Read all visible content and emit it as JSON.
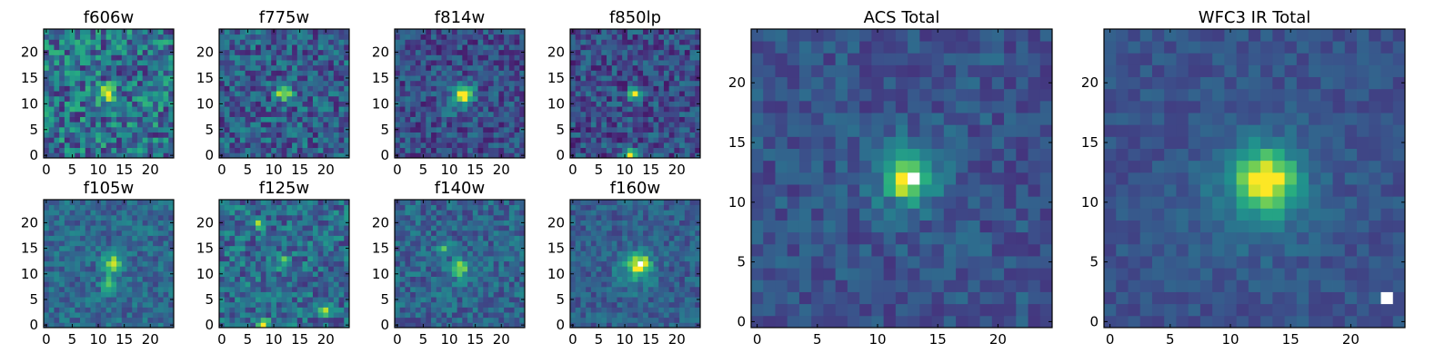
{
  "figure": {
    "description_colormap": "viridis"
  },
  "chart_data": [
    {
      "type": "heatmap",
      "title": "f606w",
      "grid_size": 25,
      "xticks": [
        "0",
        "5",
        "10",
        "15",
        "20"
      ],
      "yticks": [
        "0",
        "5",
        "10",
        "15",
        "20"
      ],
      "xlim": [
        0,
        24
      ],
      "ylim": [
        0,
        24
      ],
      "seed": 11,
      "noise": 0.55,
      "base": 0.38,
      "sources": [
        {
          "x": 12,
          "y": 12,
          "amp": 0.35,
          "sigma": 1.2
        },
        {
          "x": 11,
          "y": 12,
          "amp": 0.3,
          "sigma": 0.8
        }
      ]
    },
    {
      "type": "heatmap",
      "title": "f775w",
      "grid_size": 25,
      "xticks": [
        "0",
        "5",
        "10",
        "15",
        "20"
      ],
      "yticks": [
        "0",
        "5",
        "10",
        "15",
        "20"
      ],
      "xlim": [
        0,
        24
      ],
      "ylim": [
        0,
        24
      ],
      "seed": 23,
      "noise": 0.42,
      "base": 0.3,
      "sources": [
        {
          "x": 12,
          "y": 12,
          "amp": 0.6,
          "sigma": 1.1
        }
      ]
    },
    {
      "type": "heatmap",
      "title": "f814w",
      "grid_size": 25,
      "xticks": [
        "0",
        "5",
        "10",
        "15",
        "20"
      ],
      "yticks": [
        "0",
        "5",
        "10",
        "15",
        "20"
      ],
      "xlim": [
        0,
        24
      ],
      "ylim": [
        0,
        24
      ],
      "seed": 37,
      "noise": 0.34,
      "base": 0.24,
      "sources": [
        {
          "x": 13,
          "y": 12,
          "amp": 0.75,
          "sigma": 1.0
        },
        {
          "x": 12,
          "y": 11,
          "amp": 0.25,
          "sigma": 2.0
        }
      ]
    },
    {
      "type": "heatmap",
      "title": "f850lp",
      "grid_size": 25,
      "xticks": [
        "0",
        "5",
        "10",
        "15",
        "20"
      ],
      "yticks": [
        "0",
        "5",
        "10",
        "15",
        "20"
      ],
      "xlim": [
        0,
        24
      ],
      "ylim": [
        0,
        24
      ],
      "seed": 41,
      "noise": 0.36,
      "base": 0.24,
      "sources": [
        {
          "x": 12,
          "y": 12,
          "amp": 0.7,
          "sigma": 0.8
        },
        {
          "x": 11,
          "y": 0,
          "amp": 0.75,
          "sigma": 0.8
        }
      ]
    },
    {
      "type": "heatmap",
      "title": "ACS Total",
      "grid_size": 25,
      "xticks": [
        "0",
        "5",
        "10",
        "15",
        "20"
      ],
      "yticks": [
        "0",
        "5",
        "10",
        "15",
        "20"
      ],
      "xlim": [
        0,
        24
      ],
      "ylim": [
        0,
        24
      ],
      "seed": 53,
      "noise": 0.22,
      "base": 0.26,
      "sources": [
        {
          "x": 12.5,
          "y": 12,
          "amp": 0.72,
          "sigma": 0.9
        },
        {
          "x": 12.5,
          "y": 12,
          "amp": 0.25,
          "sigma": 2.2
        }
      ]
    },
    {
      "type": "heatmap",
      "title": "WFC3 IR Total",
      "grid_size": 25,
      "xticks": [
        "0",
        "5",
        "10",
        "15",
        "20"
      ],
      "yticks": [
        "0",
        "5",
        "10",
        "15",
        "20"
      ],
      "xlim": [
        0,
        24
      ],
      "ylim": [
        0,
        24
      ],
      "seed": 67,
      "noise": 0.15,
      "base": 0.26,
      "sources": [
        {
          "x": 13,
          "y": 12,
          "amp": 0.6,
          "sigma": 1.6
        },
        {
          "x": 12.5,
          "y": 11,
          "amp": 0.22,
          "sigma": 3.2
        }
      ],
      "special": [
        {
          "x": 23,
          "y": 2,
          "value": 1.4
        }
      ]
    },
    {
      "type": "heatmap",
      "title": "f105w",
      "grid_size": 25,
      "xticks": [
        "0",
        "5",
        "10",
        "15",
        "20"
      ],
      "yticks": [
        "0",
        "5",
        "10",
        "15",
        "20"
      ],
      "xlim": [
        0,
        24
      ],
      "ylim": [
        0,
        24
      ],
      "seed": 71,
      "noise": 0.28,
      "base": 0.34,
      "sources": [
        {
          "x": 13,
          "y": 12,
          "amp": 0.55,
          "sigma": 1.3
        },
        {
          "x": 12,
          "y": 8,
          "amp": 0.35,
          "sigma": 1.0
        }
      ]
    },
    {
      "type": "heatmap",
      "title": "f125w",
      "grid_size": 25,
      "xticks": [
        "0",
        "5",
        "10",
        "15",
        "20"
      ],
      "yticks": [
        "0",
        "5",
        "10",
        "15",
        "20"
      ],
      "xlim": [
        0,
        24
      ],
      "ylim": [
        0,
        24
      ],
      "seed": 83,
      "noise": 0.4,
      "base": 0.35,
      "sources": [
        {
          "x": 12,
          "y": 12,
          "amp": 0.4,
          "sigma": 1.0
        },
        {
          "x": 8,
          "y": 0,
          "amp": 0.6,
          "sigma": 0.8
        },
        {
          "x": 20,
          "y": 3,
          "amp": 0.5,
          "sigma": 0.8
        },
        {
          "x": 7,
          "y": 20,
          "amp": 0.4,
          "sigma": 0.7
        }
      ]
    },
    {
      "type": "heatmap",
      "title": "f140w",
      "grid_size": 25,
      "xticks": [
        "0",
        "5",
        "10",
        "15",
        "20"
      ],
      "yticks": [
        "0",
        "5",
        "10",
        "15",
        "20"
      ],
      "xlim": [
        0,
        24
      ],
      "ylim": [
        0,
        24
      ],
      "seed": 97,
      "noise": 0.3,
      "base": 0.32,
      "sources": [
        {
          "x": 12,
          "y": 11,
          "amp": 0.55,
          "sigma": 1.2
        },
        {
          "x": 9,
          "y": 15,
          "amp": 0.3,
          "sigma": 0.8
        }
      ]
    },
    {
      "type": "heatmap",
      "title": "f160w",
      "grid_size": 25,
      "xticks": [
        "0",
        "5",
        "10",
        "15",
        "20"
      ],
      "yticks": [
        "0",
        "5",
        "10",
        "15",
        "20"
      ],
      "xlim": [
        0,
        24
      ],
      "ylim": [
        0,
        24
      ],
      "seed": 103,
      "noise": 0.25,
      "base": 0.3,
      "sources": [
        {
          "x": 13,
          "y": 12,
          "amp": 0.55,
          "sigma": 1.2
        },
        {
          "x": 12,
          "y": 11,
          "amp": 0.3,
          "sigma": 2.4
        }
      ]
    }
  ]
}
